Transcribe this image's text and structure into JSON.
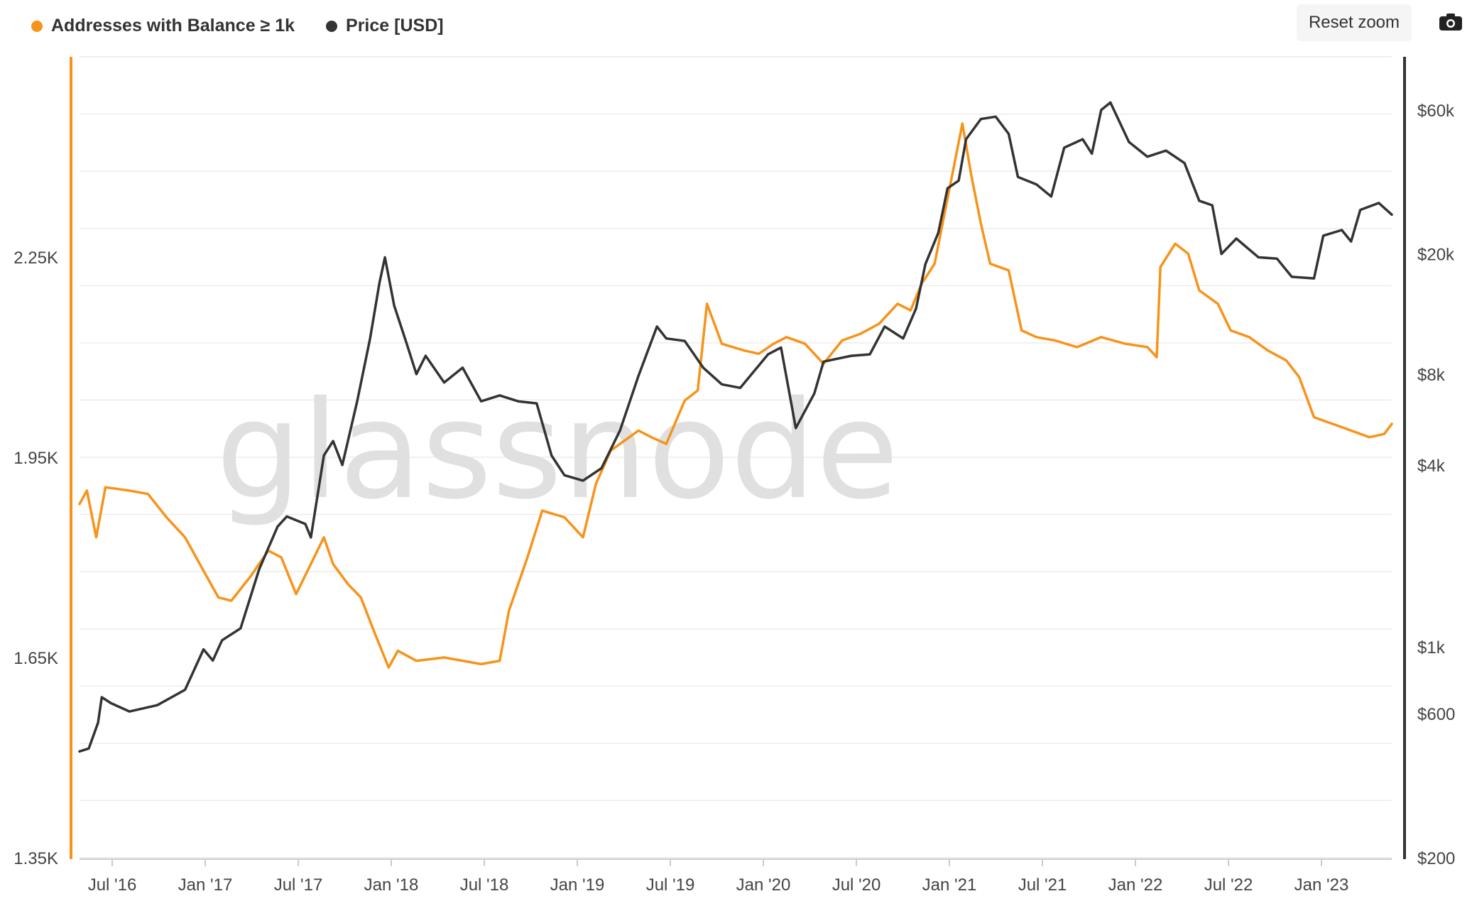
{
  "toolbar": {
    "reset_zoom_label": "Reset zoom",
    "camera_icon": "camera-icon"
  },
  "watermark": "glassnode",
  "colors": {
    "addresses": "#f7931a",
    "price": "#333333",
    "grid": "#e6e6e6"
  },
  "chart_data": {
    "type": "line",
    "title": "",
    "legend_position": "top-left",
    "grid": true,
    "x_ticks": [
      "Jul '16",
      "Jan '17",
      "Jul '17",
      "Jan '18",
      "Jul '18",
      "Jan '19",
      "Jul '19",
      "Jan '20",
      "Jul '20",
      "Jan '21",
      "Jul '21",
      "Jan '22",
      "Jul '22",
      "Jan '23"
    ],
    "x_range": [
      2016.33,
      2023.42
    ],
    "y_left": {
      "label": "",
      "scale": "linear",
      "range": [
        1350,
        2550
      ],
      "ticks": [
        1350,
        1650,
        1950,
        2250
      ],
      "tick_labels": [
        "1.35K",
        "1.65K",
        "1.95K",
        "2.25K"
      ]
    },
    "y_right": {
      "label": "",
      "scale": "log",
      "range": [
        200,
        90000
      ],
      "ticks": [
        200,
        600,
        1000,
        4000,
        8000,
        20000,
        60000
      ],
      "tick_labels": [
        "$200",
        "$600",
        "$1k",
        "$4k",
        "$8k",
        "$20k",
        "$60k"
      ]
    },
    "series": [
      {
        "name": "Addresses with Balance ≥ 1k",
        "axis": "left",
        "color": "#f7931a",
        "points": [
          [
            2016.33,
            1880
          ],
          [
            2016.37,
            1900
          ],
          [
            2016.42,
            1830
          ],
          [
            2016.47,
            1905
          ],
          [
            2016.6,
            1900
          ],
          [
            2016.7,
            1895
          ],
          [
            2016.8,
            1860
          ],
          [
            2016.9,
            1830
          ],
          [
            2017.0,
            1780
          ],
          [
            2017.08,
            1740
          ],
          [
            2017.15,
            1735
          ],
          [
            2017.25,
            1770
          ],
          [
            2017.35,
            1810
          ],
          [
            2017.42,
            1800
          ],
          [
            2017.5,
            1745
          ],
          [
            2017.58,
            1790
          ],
          [
            2017.65,
            1830
          ],
          [
            2017.7,
            1790
          ],
          [
            2017.78,
            1760
          ],
          [
            2017.85,
            1740
          ],
          [
            2017.92,
            1690
          ],
          [
            2018.0,
            1635
          ],
          [
            2018.05,
            1660
          ],
          [
            2018.15,
            1645
          ],
          [
            2018.3,
            1650
          ],
          [
            2018.5,
            1640
          ],
          [
            2018.6,
            1645
          ],
          [
            2018.65,
            1720
          ],
          [
            2018.75,
            1800
          ],
          [
            2018.83,
            1870
          ],
          [
            2018.95,
            1860
          ],
          [
            2019.05,
            1830
          ],
          [
            2019.12,
            1910
          ],
          [
            2019.2,
            1960
          ],
          [
            2019.35,
            1990
          ],
          [
            2019.42,
            1980
          ],
          [
            2019.5,
            1970
          ],
          [
            2019.6,
            2035
          ],
          [
            2019.67,
            2050
          ],
          [
            2019.72,
            2180
          ],
          [
            2019.8,
            2120
          ],
          [
            2019.92,
            2110
          ],
          [
            2020.0,
            2105
          ],
          [
            2020.08,
            2120
          ],
          [
            2020.15,
            2130
          ],
          [
            2020.25,
            2120
          ],
          [
            2020.35,
            2090
          ],
          [
            2020.45,
            2125
          ],
          [
            2020.55,
            2135
          ],
          [
            2020.65,
            2150
          ],
          [
            2020.75,
            2180
          ],
          [
            2020.82,
            2170
          ],
          [
            2020.88,
            2210
          ],
          [
            2020.95,
            2240
          ],
          [
            2021.0,
            2310
          ],
          [
            2021.05,
            2380
          ],
          [
            2021.1,
            2450
          ],
          [
            2021.15,
            2370
          ],
          [
            2021.2,
            2300
          ],
          [
            2021.25,
            2240
          ],
          [
            2021.35,
            2230
          ],
          [
            2021.42,
            2140
          ],
          [
            2021.5,
            2130
          ],
          [
            2021.6,
            2125
          ],
          [
            2021.72,
            2115
          ],
          [
            2021.85,
            2130
          ],
          [
            2021.98,
            2120
          ],
          [
            2022.1,
            2115
          ],
          [
            2022.15,
            2100
          ],
          [
            2022.17,
            2235
          ],
          [
            2022.25,
            2270
          ],
          [
            2022.32,
            2255
          ],
          [
            2022.38,
            2200
          ],
          [
            2022.48,
            2180
          ],
          [
            2022.55,
            2140
          ],
          [
            2022.65,
            2130
          ],
          [
            2022.75,
            2110
          ],
          [
            2022.85,
            2095
          ],
          [
            2022.92,
            2070
          ],
          [
            2023.0,
            2010
          ],
          [
            2023.1,
            2000
          ],
          [
            2023.2,
            1990
          ],
          [
            2023.3,
            1980
          ],
          [
            2023.38,
            1985
          ],
          [
            2023.42,
            2000
          ]
        ]
      },
      {
        "name": "Price [USD]",
        "axis": "right",
        "color": "#333333",
        "points": [
          [
            2016.33,
            450
          ],
          [
            2016.38,
            460
          ],
          [
            2016.43,
            560
          ],
          [
            2016.45,
            680
          ],
          [
            2016.5,
            650
          ],
          [
            2016.6,
            610
          ],
          [
            2016.75,
            640
          ],
          [
            2016.9,
            720
          ],
          [
            2017.0,
            980
          ],
          [
            2017.05,
            900
          ],
          [
            2017.1,
            1050
          ],
          [
            2017.2,
            1150
          ],
          [
            2017.3,
            1800
          ],
          [
            2017.4,
            2500
          ],
          [
            2017.45,
            2700
          ],
          [
            2017.55,
            2550
          ],
          [
            2017.58,
            2300
          ],
          [
            2017.65,
            4300
          ],
          [
            2017.7,
            4800
          ],
          [
            2017.75,
            4000
          ],
          [
            2017.83,
            6500
          ],
          [
            2017.9,
            10500
          ],
          [
            2017.95,
            16000
          ],
          [
            2017.98,
            19500
          ],
          [
            2018.03,
            13500
          ],
          [
            2018.1,
            10000
          ],
          [
            2018.15,
            8000
          ],
          [
            2018.2,
            9200
          ],
          [
            2018.3,
            7500
          ],
          [
            2018.4,
            8400
          ],
          [
            2018.5,
            6500
          ],
          [
            2018.6,
            6800
          ],
          [
            2018.7,
            6500
          ],
          [
            2018.8,
            6400
          ],
          [
            2018.88,
            4300
          ],
          [
            2018.95,
            3700
          ],
          [
            2019.05,
            3550
          ],
          [
            2019.15,
            3900
          ],
          [
            2019.25,
            5200
          ],
          [
            2019.35,
            7900
          ],
          [
            2019.45,
            11500
          ],
          [
            2019.5,
            10500
          ],
          [
            2019.6,
            10300
          ],
          [
            2019.7,
            8400
          ],
          [
            2019.8,
            7400
          ],
          [
            2019.9,
            7200
          ],
          [
            2020.05,
            9300
          ],
          [
            2020.12,
            9800
          ],
          [
            2020.2,
            5300
          ],
          [
            2020.3,
            6900
          ],
          [
            2020.35,
            8800
          ],
          [
            2020.5,
            9200
          ],
          [
            2020.6,
            9300
          ],
          [
            2020.68,
            11500
          ],
          [
            2020.78,
            10500
          ],
          [
            2020.85,
            13200
          ],
          [
            2020.9,
            18500
          ],
          [
            2020.97,
            23500
          ],
          [
            2021.02,
            33000
          ],
          [
            2021.08,
            35000
          ],
          [
            2021.12,
            48000
          ],
          [
            2021.2,
            56000
          ],
          [
            2021.28,
            57000
          ],
          [
            2021.35,
            50000
          ],
          [
            2021.4,
            36000
          ],
          [
            2021.5,
            34000
          ],
          [
            2021.58,
            31000
          ],
          [
            2021.65,
            45000
          ],
          [
            2021.75,
            48000
          ],
          [
            2021.8,
            43000
          ],
          [
            2021.85,
            60000
          ],
          [
            2021.9,
            63500
          ],
          [
            2022.0,
            47000
          ],
          [
            2022.1,
            42000
          ],
          [
            2022.2,
            44000
          ],
          [
            2022.3,
            40000
          ],
          [
            2022.38,
            30000
          ],
          [
            2022.45,
            29000
          ],
          [
            2022.5,
            20000
          ],
          [
            2022.58,
            22500
          ],
          [
            2022.7,
            19500
          ],
          [
            2022.8,
            19300
          ],
          [
            2022.88,
            16800
          ],
          [
            2023.0,
            16600
          ],
          [
            2023.05,
            23000
          ],
          [
            2023.15,
            24000
          ],
          [
            2023.2,
            22000
          ],
          [
            2023.25,
            28000
          ],
          [
            2023.35,
            29500
          ],
          [
            2023.42,
            27000
          ]
        ]
      }
    ]
  }
}
